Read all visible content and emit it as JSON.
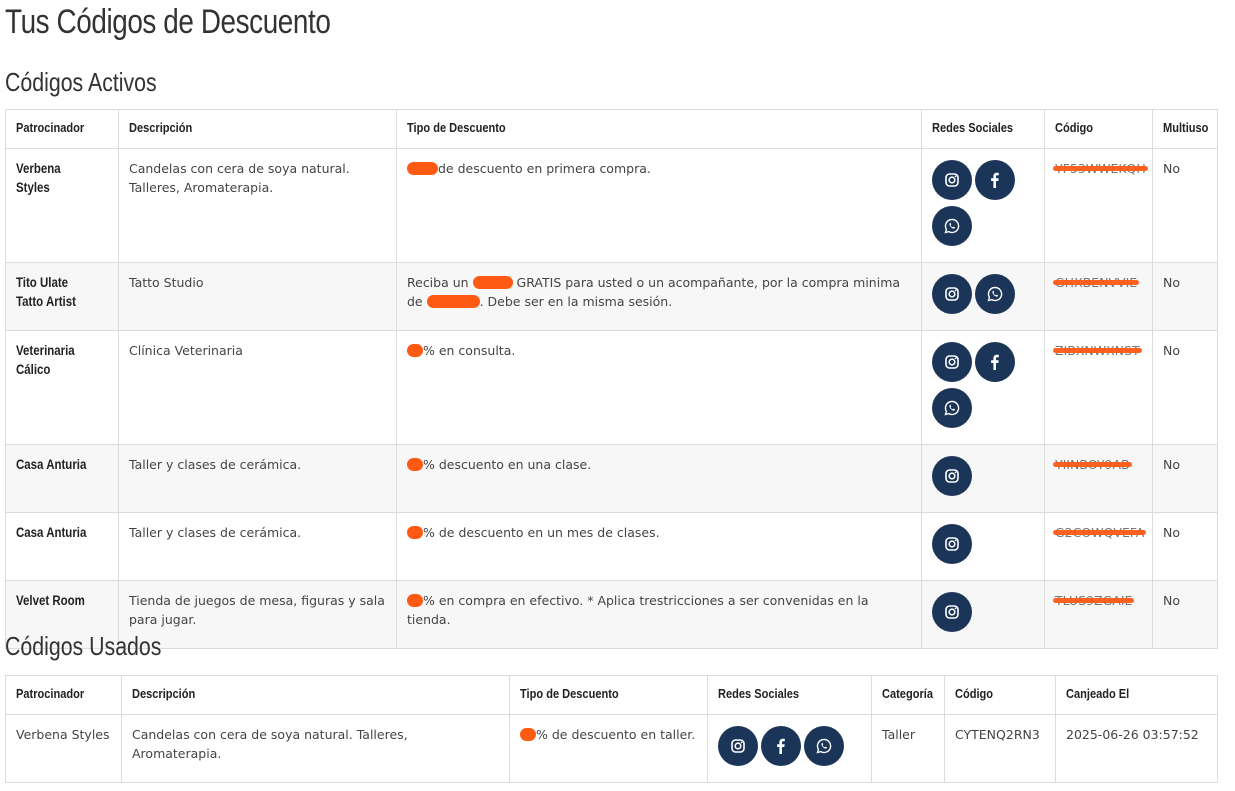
{
  "page_title": "Tus Códigos de Descuento",
  "active": {
    "heading": "Códigos Activos",
    "headers": [
      "Patrocinador",
      "Descripción",
      "Tipo de Descuento",
      "Redes Sociales",
      "Código",
      "Multiuso"
    ],
    "rows": [
      {
        "sponsor": "Verbena Styles",
        "description": "Candelas con cera de soya natural. Talleres, Aromaterapia.",
        "discount_after": "de descuento en primera compra.",
        "social": [
          "instagram-icon",
          "facebook-icon",
          "whatsapp-icon"
        ],
        "code": "YF53WWEKQH",
        "multi": "No"
      },
      {
        "sponsor": "Tito Ulate Tatto Artist",
        "description": "Tatto Studio",
        "discount_before": "Reciba un",
        "discount_mid": "GRATIS para usted o un acompañante, por la compra minima de",
        "discount_after": ". Debe ser en la misma sesión.",
        "social": [
          "instagram-icon",
          "whatsapp-icon"
        ],
        "code": "GHXBENVVIE",
        "multi": "No"
      },
      {
        "sponsor": "Veterinaria Cálico",
        "description": "Clínica Veterinaria",
        "discount_after": "% en consulta.",
        "social": [
          "instagram-icon",
          "facebook-icon",
          "whatsapp-icon"
        ],
        "code": "ZIBXNWXNST",
        "multi": "No"
      },
      {
        "sponsor": "Casa Anturia",
        "description": "Taller y clases de cerámica.",
        "discount_after": "% descuento en una clase.",
        "social": [
          "instagram-icon"
        ],
        "code": "YIINBOY9AB",
        "multi": "No"
      },
      {
        "sponsor": "Casa Anturia",
        "description": "Taller y clases de cerámica.",
        "discount_after": "% de descuento en un mes de clases.",
        "social": [
          "instagram-icon"
        ],
        "code": "G2COWQVEFA",
        "multi": "No"
      },
      {
        "sponsor": "Velvet Room",
        "description": "Tienda de juegos de mesa, figuras y sala para jugar.",
        "discount_after": "% en compra en efectivo. * Aplica trestricciones a ser convenidas en la tienda.",
        "social": [
          "instagram-icon"
        ],
        "code": "TLUS9ZGAIE",
        "multi": "No"
      }
    ]
  },
  "used": {
    "heading": "Códigos Usados",
    "headers": [
      "Patrocinador",
      "Descripción",
      "Tipo de Descuento",
      "Redes Sociales",
      "Categoría",
      "Código",
      "Canjeado El"
    ],
    "rows": [
      {
        "sponsor": "Verbena Styles",
        "description": "Candelas con cera de soya natural. Talleres, Aromaterapia.",
        "discount_after": "% de descuento en taller.",
        "social": [
          "instagram-icon",
          "facebook-icon",
          "whatsapp-icon"
        ],
        "category": "Taller",
        "code": "CYTENQ2RN3",
        "redeemed": "2025-06-26 03:57:52"
      }
    ]
  },
  "colors": {
    "icon_button": "#1b3558",
    "redaction": "#ff5a14",
    "alt_row": "#f7f7f7"
  }
}
